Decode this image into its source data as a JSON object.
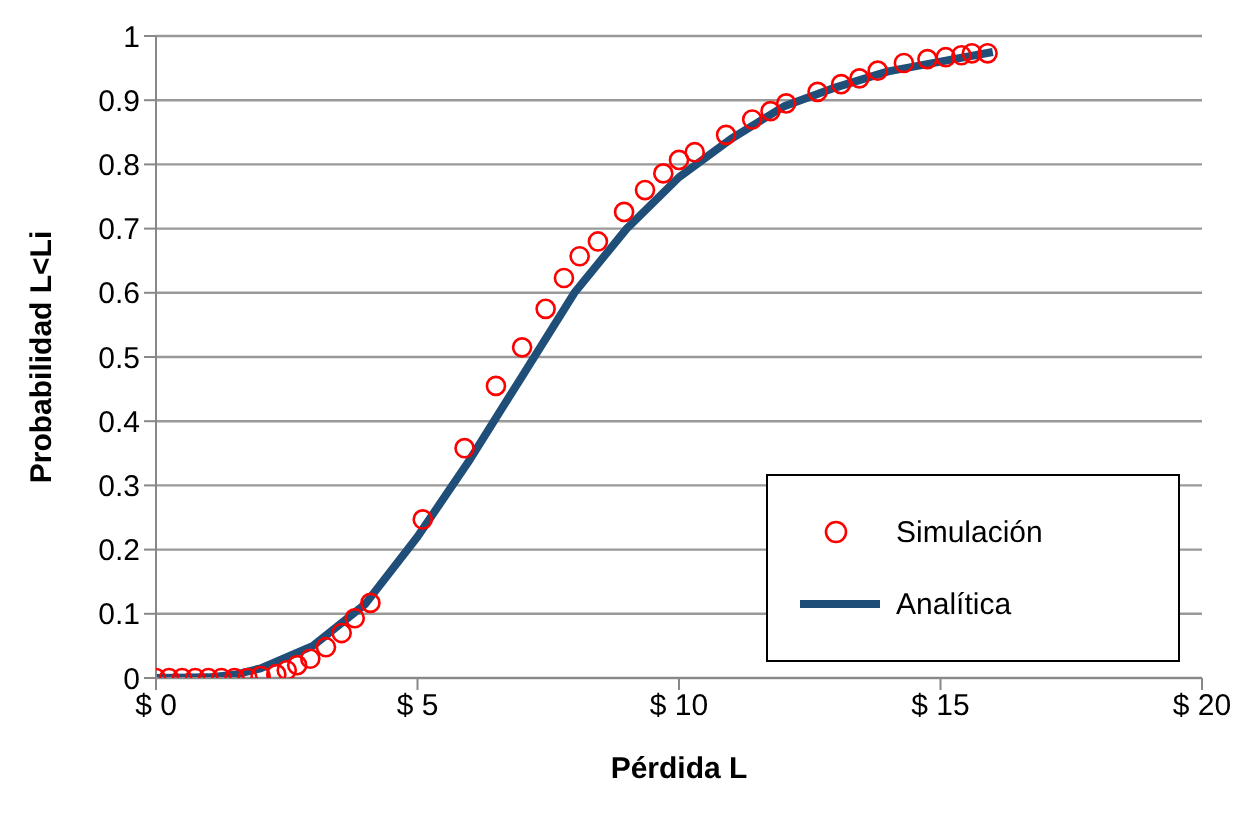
{
  "chart_data": {
    "type": "scatter",
    "xlabel": "Pérdida L",
    "ylabel": "Probabilidad L<Li",
    "xlim": [
      0,
      20
    ],
    "xticks": [
      {
        "value": 0,
        "label": "$ 0"
      },
      {
        "value": 5,
        "label": "$ 5"
      },
      {
        "value": 10,
        "label": "$ 10"
      },
      {
        "value": 15,
        "label": "$ 15"
      },
      {
        "value": 20,
        "label": "$ 20"
      }
    ],
    "ylim": [
      0,
      1
    ],
    "yticks": [
      0,
      0.1,
      0.2,
      0.3,
      0.4,
      0.5,
      0.6,
      0.7,
      0.8,
      0.9,
      1
    ],
    "grid": "y",
    "legend": "bottom right",
    "series": [
      {
        "name": "Simulación",
        "marker": "circle",
        "color": "#ff0000",
        "x": [
          0,
          0.25,
          0.5,
          0.75,
          1.0,
          1.25,
          1.5,
          1.75,
          2.0,
          2.3,
          2.5,
          2.7,
          2.95,
          3.25,
          3.55,
          3.8,
          4.1,
          5.1,
          5.9,
          6.5,
          7.0,
          7.45,
          7.8,
          8.1,
          8.45,
          8.95,
          9.35,
          9.7,
          10.0,
          10.3,
          10.9,
          11.4,
          11.75,
          12.05,
          12.65,
          13.1,
          13.45,
          13.8,
          14.3,
          14.75,
          15.1,
          15.4,
          15.6,
          15.9
        ],
        "values": [
          0,
          0,
          0,
          0,
          0,
          0,
          0,
          0,
          0.003,
          0.006,
          0.012,
          0.02,
          0.03,
          0.048,
          0.07,
          0.093,
          0.117,
          0.247,
          0.358,
          0.455,
          0.515,
          0.575,
          0.623,
          0.657,
          0.68,
          0.726,
          0.76,
          0.786,
          0.807,
          0.819,
          0.846,
          0.87,
          0.883,
          0.895,
          0.913,
          0.925,
          0.934,
          0.946,
          0.958,
          0.964,
          0.967,
          0.97,
          0.973,
          0.973
        ]
      },
      {
        "name": "Analítica",
        "type": "line",
        "marker": "none",
        "line_style": "solid",
        "color": "#1f4e79",
        "x": [
          0,
          1,
          1.5,
          2,
          3,
          4,
          5,
          6,
          7,
          8,
          9,
          10,
          11,
          12,
          13,
          14,
          15,
          16
        ],
        "values": [
          0,
          0.001,
          0.005,
          0.015,
          0.05,
          0.115,
          0.22,
          0.34,
          0.47,
          0.6,
          0.7,
          0.78,
          0.84,
          0.89,
          0.92,
          0.945,
          0.96,
          0.975
        ]
      }
    ]
  }
}
